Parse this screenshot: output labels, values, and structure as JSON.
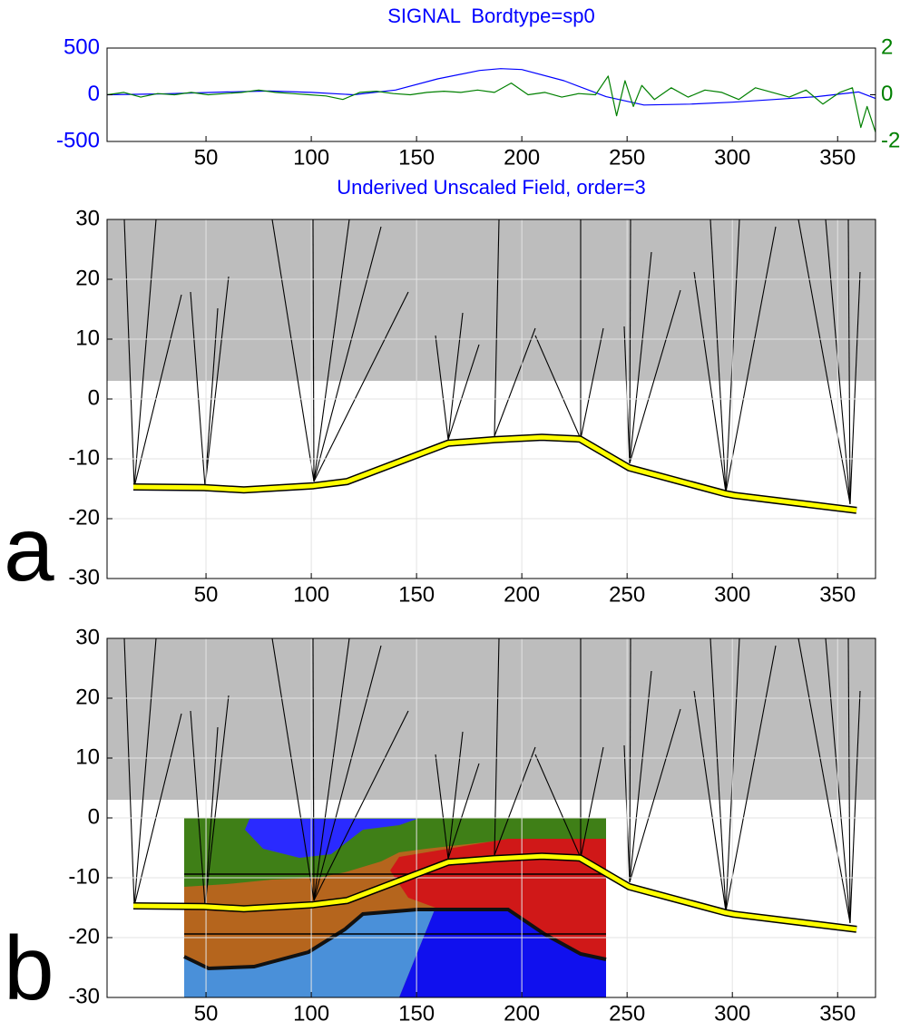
{
  "chart_data": [
    {
      "type": "line",
      "title": "SIGNAL  Bordtype=sp0",
      "xlim": [
        3,
        368
      ],
      "xticks": [
        50,
        100,
        150,
        200,
        250,
        300,
        350
      ],
      "ylim": [
        -500,
        500
      ],
      "yticks": [
        -500,
        0,
        500
      ],
      "y2lim": [
        -2,
        2
      ],
      "y2ticks": [
        -2,
        0,
        2
      ],
      "grid": false,
      "series": [
        {
          "color": "#0000ff",
          "axis": "y",
          "x": [
            3,
            30,
            60,
            80,
            100,
            120,
            140,
            160,
            180,
            190,
            200,
            220,
            240,
            258,
            280,
            300,
            320,
            340,
            360,
            368
          ],
          "values": [
            0,
            10,
            30,
            40,
            25,
            0,
            50,
            170,
            260,
            280,
            270,
            150,
            -20,
            -110,
            -100,
            -80,
            -50,
            -20,
            30,
            -40
          ]
        },
        {
          "color": "#008000",
          "axis": "y2",
          "x": [
            3,
            11,
            19,
            27,
            35,
            43,
            51,
            59,
            67,
            75,
            83,
            91,
            99,
            107,
            115,
            123,
            131,
            139,
            147,
            155,
            163,
            171,
            179,
            187,
            195,
            203,
            211,
            219,
            227,
            235,
            241,
            245,
            249,
            253,
            257,
            263,
            271,
            279,
            287,
            295,
            303,
            311,
            319,
            327,
            335,
            343,
            351,
            357,
            361,
            364,
            368
          ],
          "values": [
            0,
            0.1,
            -0.1,
            0.05,
            0,
            0.1,
            0,
            0.05,
            0.1,
            0.2,
            0.1,
            0.05,
            0,
            -0.05,
            -0.2,
            0.1,
            0.15,
            0.05,
            0,
            0.1,
            0.15,
            0.1,
            0.2,
            0.1,
            0.5,
            0,
            0.1,
            -0.1,
            0.05,
            0,
            0.8,
            -0.9,
            0.6,
            -0.5,
            0.4,
            -0.2,
            0.3,
            -0.1,
            0.2,
            0.1,
            -0.2,
            0.3,
            0.1,
            -0.1,
            0.2,
            -0.4,
            0.1,
            0.3,
            -1.4,
            -0.5,
            -1.6
          ]
        }
      ]
    },
    {
      "type": "line",
      "title": "Underived Unscaled Field, order=3",
      "panel_label": "a",
      "xlim": [
        3,
        368
      ],
      "xticks": [
        50,
        100,
        150,
        200,
        250,
        300,
        350
      ],
      "ylim": [
        -30,
        30
      ],
      "yticks": [
        -30,
        -20,
        -10,
        0,
        10,
        20,
        30
      ],
      "grid": true,
      "series": [
        {
          "color": "#ffff00",
          "x": [
            15.5,
            49,
            68,
            101,
            117,
            165,
            187,
            209.5,
            227.6,
            251,
            296.5,
            301,
            359
          ],
          "values": [
            -14.7,
            -14.8,
            -15.2,
            -14.5,
            -13.8,
            -7.4,
            -6.8,
            -6.4,
            -6.7,
            -11.5,
            -15.8,
            -16.1,
            -18.6
          ]
        }
      ]
    },
    {
      "type": "line",
      "panel_label": "b",
      "xlim": [
        3,
        368
      ],
      "xticks": [
        50,
        100,
        150,
        200,
        250,
        300,
        350
      ],
      "ylim": [
        -30,
        30
      ],
      "yticks": [
        -30,
        -20,
        -10,
        0,
        10,
        20,
        30
      ],
      "grid": true,
      "series": [
        {
          "color": "#ffff00",
          "x": [
            15.5,
            49,
            68,
            101,
            117,
            165,
            187,
            209.5,
            227.6,
            251,
            296.5,
            301,
            359
          ],
          "values": [
            -14.7,
            -14.8,
            -15.2,
            -14.5,
            -13.8,
            -7.4,
            -6.8,
            -6.4,
            -6.7,
            -11.5,
            -15.8,
            -16.1,
            -18.6
          ]
        }
      ]
    }
  ]
}
